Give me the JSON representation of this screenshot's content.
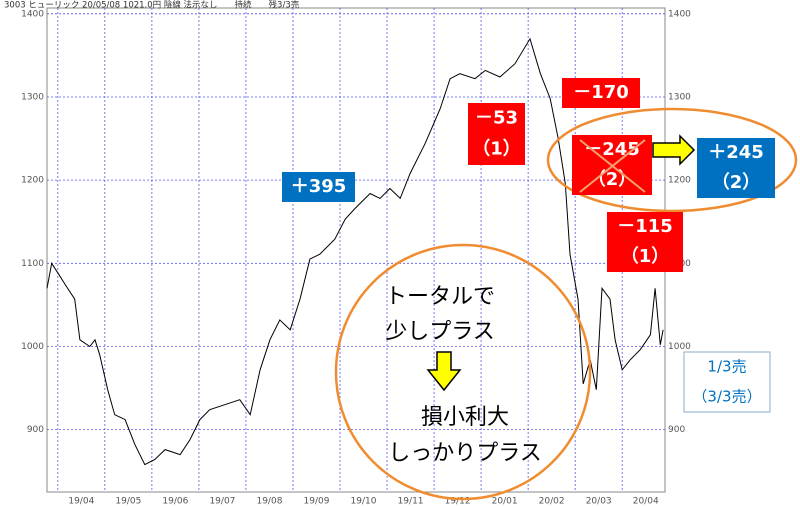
{
  "chart_data": {
    "type": "line",
    "title": "3003 ヒューリック 20/05/08 1021.0円 陰線 法示なし　　持続　　残3/3売",
    "x": [
      0.77,
      0.87,
      1.04,
      1.15,
      1.36,
      1.47,
      1.68,
      1.79,
      1.89,
      2.06,
      2.21,
      2.43,
      2.64,
      2.85,
      3.06,
      3.28,
      3.6,
      3.81,
      4.02,
      4.23,
      4.55,
      4.87,
      5.09,
      5.3,
      5.51,
      5.72,
      5.94,
      6.15,
      6.36,
      6.57,
      6.89,
      7.11,
      7.32,
      7.64,
      7.85,
      8.06,
      8.28,
      8.49,
      8.81,
      9.13,
      9.34,
      9.55,
      9.87,
      10.09,
      10.4,
      10.72,
      11.04,
      11.26,
      11.47,
      11.64,
      11.79,
      11.89,
      12.06,
      12.17,
      12.32,
      12.45,
      12.57,
      12.74,
      12.85,
      13.0,
      13.17,
      13.38,
      13.6,
      13.7,
      13.81,
      13.87
    ],
    "series": [
      {
        "color": "#000000",
        "values": [
          1070,
          1100,
          1085,
          1075,
          1057,
          1008,
          1000,
          1008,
          990,
          948,
          918,
          912,
          882,
          858,
          864,
          876,
          870,
          888,
          912,
          924,
          930,
          936,
          918,
          972,
          1008,
          1032,
          1020,
          1057,
          1105,
          1111,
          1129,
          1153,
          1166,
          1184,
          1178,
          1190,
          1178,
          1208,
          1244,
          1286,
          1322,
          1328,
          1322,
          1332,
          1324,
          1340,
          1370,
          1328,
          1298,
          1250,
          1196,
          1111,
          1057,
          955,
          984,
          948,
          1070,
          1057,
          1008,
          972,
          984,
          996,
          1014,
          1070,
          1002,
          1020
        ]
      }
    ],
    "xlim": [
      0.77,
      13.91
    ],
    "xticks": [
      {
        "value": 1,
        "label": "19/04"
      },
      {
        "value": 2,
        "label": "19/05"
      },
      {
        "value": 3,
        "label": "19/06"
      },
      {
        "value": 4,
        "label": "19/07"
      },
      {
        "value": 5,
        "label": "19/08"
      },
      {
        "value": 6,
        "label": "19/09"
      },
      {
        "value": 7,
        "label": "19/10"
      },
      {
        "value": 8,
        "label": "19/11"
      },
      {
        "value": 9,
        "label": "19/12"
      },
      {
        "value": 10,
        "label": "20/01"
      },
      {
        "value": 11,
        "label": "20/02"
      },
      {
        "value": 12,
        "label": "20/03"
      },
      {
        "value": 13,
        "label": "20/04"
      }
    ],
    "ylim": [
      825,
      1407
    ],
    "yticks": [
      900,
      1000,
      1100,
      1200,
      1300,
      1400
    ],
    "grid": true,
    "annotations": [
      {
        "lines": [
          "＋395"
        ]
      },
      {
        "lines": [
          "－53",
          "（1）"
        ]
      },
      {
        "lines": [
          "－170"
        ]
      },
      {
        "lines": [
          "－245",
          "（2）"
        ]
      },
      {
        "lines": [
          "＋245",
          "（2）"
        ]
      },
      {
        "lines": [
          "－115",
          "（1）"
        ]
      },
      {
        "lines": [
          "トータルで",
          "少しプラス"
        ]
      },
      {
        "lines": [
          "損小利大",
          "しっかりプラス"
        ]
      },
      {
        "lines": [
          "1/3売",
          "（3/3売）"
        ]
      }
    ]
  }
}
